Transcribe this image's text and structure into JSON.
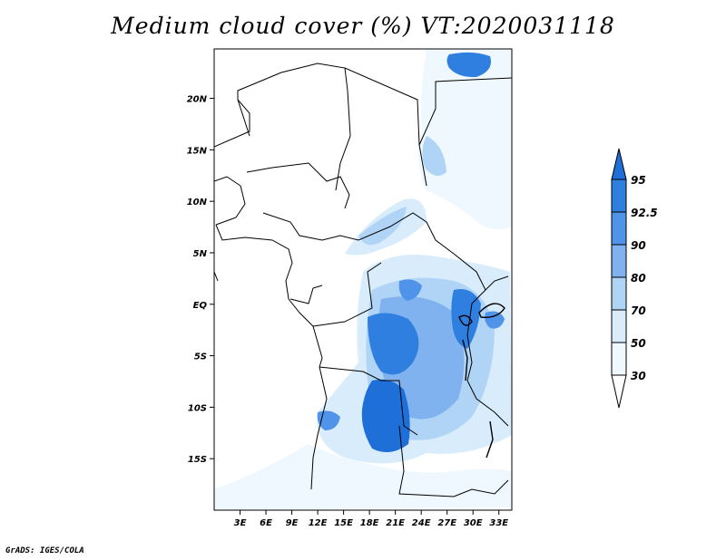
{
  "title": "Medium cloud cover (%) VT:2020031118",
  "credit": "GrADS: IGES/COLA",
  "map": {
    "lat_labels": [
      "20N",
      "15N",
      "10N",
      "5N",
      "EQ",
      "5S",
      "10S",
      "15S"
    ],
    "lat_values": [
      20,
      15,
      10,
      5,
      0,
      -5,
      -10,
      -15
    ],
    "lon_labels": [
      "3E",
      "6E",
      "9E",
      "12E",
      "15E",
      "18E",
      "21E",
      "24E",
      "27E",
      "30E",
      "33E"
    ],
    "lon_values": [
      3,
      6,
      9,
      12,
      15,
      18,
      21,
      24,
      27,
      30,
      33
    ],
    "lon_range": [
      0,
      34.5
    ],
    "lat_range": [
      -20,
      24.8
    ]
  },
  "colorbar": {
    "labels": [
      "95",
      "92.5",
      "90",
      "80",
      "70",
      "50",
      "30"
    ],
    "colors": [
      "#1f6fd8",
      "#2f7fe0",
      "#4f94e8",
      "#7fb2ef",
      "#b0d4f5",
      "#d8ecfb",
      "#eef8fe"
    ]
  }
}
